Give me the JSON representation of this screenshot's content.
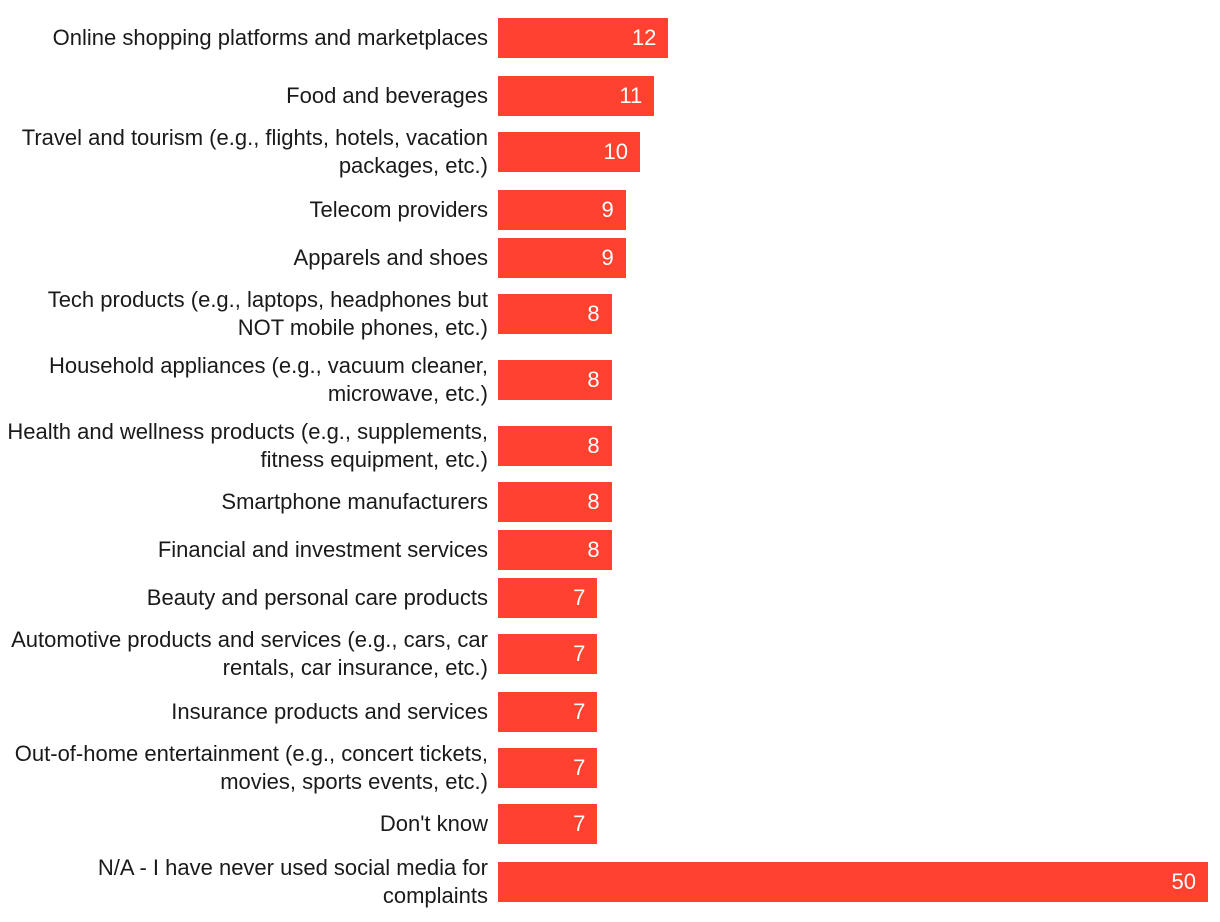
{
  "chart_data": {
    "type": "bar",
    "orientation": "horizontal",
    "categories": [
      "Online shopping platforms and marketplaces",
      "Food and beverages",
      "Travel and tourism (e.g., flights, hotels, vacation packages, etc.)",
      "Telecom providers",
      "Apparels and shoes",
      "Tech products (e.g., laptops, headphones but NOT mobile phones, etc.)",
      "Household appliances (e.g., vacuum cleaner, microwave, etc.)",
      "Health and wellness products (e.g., supplements, fitness equipment, etc.)",
      "Smartphone manufacturers",
      "Financial and investment services",
      "Beauty and personal care products",
      "Automotive products and services (e.g., cars, car rentals, car insurance, etc.)",
      "Insurance products and services",
      "Out-of-home entertainment (e.g., concert tickets, movies, sports events, etc.)",
      "Don't know",
      "N/A - I have never used social media for complaints"
    ],
    "values": [
      12,
      11,
      10,
      9,
      9,
      8,
      8,
      8,
      8,
      8,
      7,
      7,
      7,
      7,
      7,
      50
    ],
    "value_labels": [
      "12",
      "11",
      "10",
      "9",
      "9",
      "8",
      "8",
      "8",
      "8",
      "8",
      "7",
      "7",
      "7",
      "7",
      "7",
      "50"
    ],
    "xlim": [
      0,
      50
    ],
    "grid": false,
    "legend": "none",
    "bar_color": "#ff4130",
    "label_color": "#1a1a1a",
    "value_label_color": "#ffffff"
  }
}
